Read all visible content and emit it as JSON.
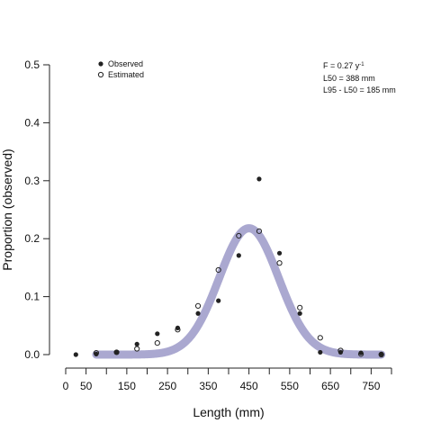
{
  "chart_data": {
    "type": "scatter",
    "xlabel": "Length (mm)",
    "ylabel": "Proportion (observed)",
    "xlim": [
      0,
      800
    ],
    "ylim": [
      0,
      0.5
    ],
    "x_ticks": [
      0,
      50,
      150,
      250,
      350,
      450,
      550,
      650,
      750
    ],
    "x_tick_labels": [
      "0",
      "50",
      "150",
      "250",
      "350",
      "450",
      "550",
      "650",
      "750"
    ],
    "x_minor_ticks": [
      100,
      200,
      300,
      400,
      500,
      600,
      700,
      800
    ],
    "y_ticks": [
      0,
      0.1,
      0.2,
      0.3,
      0.4,
      0.5
    ],
    "y_tick_labels": [
      "0.0",
      "0.1",
      "0.2",
      "0.3",
      "0.4",
      "0.5"
    ],
    "legend": {
      "position": "top-left",
      "entries": [
        {
          "label": "Observed",
          "marker": "filled-circle"
        },
        {
          "label": "Estimated",
          "marker": "open-circle"
        }
      ]
    },
    "annotations": {
      "position": "top-right",
      "lines": [
        {
          "prefix": "F = 0.27 y",
          "superscript": "-1"
        },
        {
          "prefix": "L50 = 388 mm",
          "superscript": ""
        },
        {
          "prefix": "L95 - L50 = 185 mm",
          "superscript": ""
        }
      ]
    },
    "series": [
      {
        "name": "Observed",
        "marker": "filled",
        "color": "#222222",
        "x": [
          25,
          75,
          125,
          175,
          225,
          275,
          325,
          375,
          425,
          475,
          525,
          575,
          625,
          675,
          725,
          775
        ],
        "y": [
          0.0,
          0.001,
          0.004,
          0.018,
          0.036,
          0.046,
          0.071,
          0.093,
          0.171,
          0.303,
          0.175,
          0.071,
          0.004,
          0.004,
          0.003,
          0.001
        ]
      },
      {
        "name": "Estimated",
        "marker": "open",
        "color": "#222222",
        "x": [
          75,
          125,
          175,
          225,
          275,
          325,
          375,
          425,
          475,
          525,
          575,
          625,
          675,
          725,
          775
        ],
        "y": [
          0.003,
          0.004,
          0.01,
          0.02,
          0.043,
          0.084,
          0.146,
          0.205,
          0.213,
          0.158,
          0.081,
          0.029,
          0.007,
          0.001,
          0.0
        ]
      }
    ],
    "fitted_band": {
      "color": "#aaa8d0",
      "mean": 450,
      "sd": 73,
      "peak": 0.218,
      "x_range": [
        75,
        775
      ]
    }
  }
}
